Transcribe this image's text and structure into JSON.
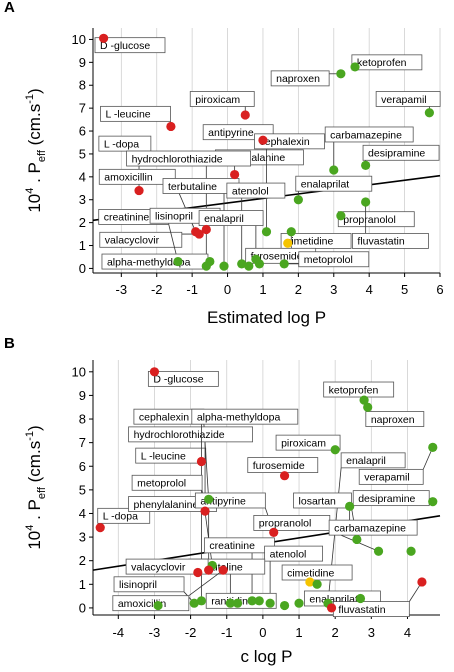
{
  "colors": {
    "red": "#d92020",
    "green": "#4aa620",
    "yellow": "#f5c400",
    "grid": "#d0d0d0"
  },
  "chart_data": [
    {
      "type": "scatter",
      "panel": "A",
      "xlabel": "Estimated log P",
      "ylabel_main": "10",
      "ylabel_sup": "4",
      "ylabel_p": "P",
      "ylabel_sub": "eff",
      "ylabel_unit": "(cm.s",
      "ylabel_sup2": "-1",
      "ylabel_close": ")",
      "xlim": [
        -3.8,
        6.0
      ],
      "ylim": [
        -0.2,
        10.5
      ],
      "xticks": [
        -3,
        -2,
        -1,
        0,
        1,
        2,
        3,
        4,
        5,
        6
      ],
      "yticks": [
        0,
        1,
        2,
        3,
        4,
        5,
        6,
        7,
        8,
        9,
        10
      ],
      "trend": [
        [
          -3.8,
          2.1
        ],
        [
          6.0,
          4.05
        ]
      ],
      "points": [
        {
          "name": "D -glucose",
          "x": -3.5,
          "y": 10.05,
          "color": "red",
          "lx": -2.9,
          "ly": 9.75
        },
        {
          "name": "L -leucine",
          "x": -1.6,
          "y": 6.2,
          "color": "red",
          "lx": -2.6,
          "ly": 6.75
        },
        {
          "name": "L -dopa",
          "x": -2.5,
          "y": 3.4,
          "color": "red",
          "lx": -2.9,
          "ly": 5.45
        },
        {
          "name": "piroxicam",
          "x": 0.5,
          "y": 6.7,
          "color": "red",
          "lx": -0.15,
          "ly": 7.4
        },
        {
          "name": "antipyrine",
          "x": 1.0,
          "y": 5.6,
          "color": "red",
          "lx": 0.3,
          "ly": 5.95
        },
        {
          "name": "phenylalanine",
          "x": 0.2,
          "y": 4.1,
          "color": "red",
          "lx": 0.9,
          "ly": 4.85
        },
        {
          "name": "hydrochlorothiazide",
          "x": -0.6,
          "y": 1.7,
          "color": "red",
          "lx": -1.1,
          "ly": 4.8
        },
        {
          "name": "amoxicillin",
          "x": -0.9,
          "y": 1.6,
          "color": "red",
          "lx": -2.55,
          "ly": 4.0
        },
        {
          "name": "valacyclovir",
          "x": -0.8,
          "y": 1.5,
          "color": "red",
          "lx": -2.45,
          "ly": 1.25
        },
        {
          "name": "naproxen",
          "x": 3.2,
          "y": 8.5,
          "color": "green",
          "lx": 2.05,
          "ly": 8.3
        },
        {
          "name": "ketoprofen",
          "x": 3.6,
          "y": 8.8,
          "color": "green",
          "lx": 4.5,
          "ly": 9.0
        },
        {
          "name": "verapamil",
          "x": 5.7,
          "y": 6.8,
          "color": "green",
          "lx": 5.1,
          "ly": 7.4
        },
        {
          "name": "cephalexin",
          "x": 1.1,
          "y": 1.6,
          "color": "green",
          "lx": 1.75,
          "ly": 5.55
        },
        {
          "name": "carbamazepine",
          "x": 3.0,
          "y": 4.3,
          "color": "green",
          "lx": 4.0,
          "ly": 5.85
        },
        {
          "name": "desipramine",
          "x": 3.9,
          "y": 4.5,
          "color": "green",
          "lx": 4.9,
          "ly": 5.05
        },
        {
          "name": "terbutaline",
          "x": -0.1,
          "y": 0.1,
          "color": "green",
          "lx": -0.75,
          "ly": 3.6
        },
        {
          "name": "atenolol",
          "x": 0.4,
          "y": 0.2,
          "color": "green",
          "lx": 0.8,
          "ly": 3.4
        },
        {
          "name": "creatinine",
          "x": -1.4,
          "y": 0.3,
          "color": "green",
          "lx": -2.65,
          "ly": 2.25
        },
        {
          "name": "lisinopril",
          "x": -0.6,
          "y": 0.1,
          "color": "green",
          "lx": -1.2,
          "ly": 2.3
        },
        {
          "name": "enalapril",
          "x": 0.8,
          "y": 0.4,
          "color": "green",
          "lx": 0.1,
          "ly": 2.2
        },
        {
          "name": "enalaprilat",
          "x": 2.0,
          "y": 3.0,
          "color": "green",
          "lx": 3.0,
          "ly": 3.7
        },
        {
          "name": "propranolol",
          "x": 3.2,
          "y": 2.3,
          "color": "green",
          "lx": 4.2,
          "ly": 2.15
        },
        {
          "name": "fluvastatin",
          "x": 3.9,
          "y": 2.9,
          "color": "green",
          "lx": 4.6,
          "ly": 1.2
        },
        {
          "name": "cimetidine",
          "x": 1.7,
          "y": 1.1,
          "color": "yellow",
          "lx": 2.5,
          "ly": 1.2
        },
        {
          "name": "furosemide",
          "x": 1.8,
          "y": 1.6,
          "color": "green",
          "lx": 1.5,
          "ly": 0.55
        },
        {
          "name": "metoprolol",
          "x": 1.6,
          "y": 0.2,
          "color": "green",
          "lx": 3.0,
          "ly": 0.4
        },
        {
          "name": "alpha-methyldopa",
          "x": -0.5,
          "y": 0.3,
          "color": "green",
          "lx": -2.05,
          "ly": 0.3
        },
        {
          "name": "",
          "x": 0.6,
          "y": 0.1,
          "color": "green"
        },
        {
          "name": "",
          "x": 0.9,
          "y": 0.2,
          "color": "green"
        }
      ]
    },
    {
      "type": "scatter",
      "panel": "B",
      "xlabel": "c log P",
      "ylabel_main": "10",
      "ylabel_sup": "4",
      "ylabel_p": "P",
      "ylabel_sub": "eff",
      "ylabel_unit": "(cm.s",
      "ylabel_sup2": "-1",
      "ylabel_close": ")",
      "xlim": [
        -4.7,
        4.9
      ],
      "ylim": [
        -0.3,
        10.5
      ],
      "xticks": [
        -4,
        -3,
        -2,
        -1,
        0,
        1,
        2,
        3,
        4
      ],
      "yticks": [
        0,
        1,
        2,
        3,
        4,
        5,
        6,
        7,
        8,
        9,
        10
      ],
      "trend": [
        [
          -4.7,
          1.6
        ],
        [
          4.9,
          3.9
        ]
      ],
      "points": [
        {
          "name": "D -glucose",
          "x": -3.0,
          "y": 10.0,
          "color": "red",
          "lx": -2.2,
          "ly": 9.7
        },
        {
          "name": "L -leucine",
          "x": -1.7,
          "y": 6.2,
          "color": "red",
          "lx": -2.55,
          "ly": 6.45
        },
        {
          "name": "L -dopa",
          "x": -4.5,
          "y": 3.4,
          "color": "red",
          "lx": -3.85,
          "ly": 3.9
        },
        {
          "name": "cephalexin",
          "x": -1.5,
          "y": 4.6,
          "color": "green",
          "lx": -2.6,
          "ly": 8.1
        },
        {
          "name": "hydrochlorothiazide",
          "x": -1.6,
          "y": 4.1,
          "color": "red",
          "lx": -2.0,
          "ly": 7.35
        },
        {
          "name": "alpha-methyldopa",
          "x": -1.7,
          "y": 0.3,
          "color": "green",
          "lx": -0.5,
          "ly": 8.1
        },
        {
          "name": "metoprolol",
          "x": -1.4,
          "y": 1.8,
          "color": "green",
          "lx": -2.65,
          "ly": 5.3
        },
        {
          "name": "phenylalanine",
          "x": -1.5,
          "y": 1.6,
          "color": "red",
          "lx": -2.5,
          "ly": 4.4
        },
        {
          "name": "antipyrine",
          "x": 0.3,
          "y": 3.2,
          "color": "red",
          "lx": -0.9,
          "ly": 4.55
        },
        {
          "name": "furosemide",
          "x": 0.6,
          "y": 5.6,
          "color": "red",
          "lx": 0.55,
          "ly": 6.05
        },
        {
          "name": "piroxicam",
          "x": 2.0,
          "y": 6.7,
          "color": "green",
          "lx": 1.25,
          "ly": 7.0
        },
        {
          "name": "ketoprofen",
          "x": 2.8,
          "y": 8.8,
          "color": "green",
          "lx": 2.65,
          "ly": 9.25
        },
        {
          "name": "naproxen",
          "x": 2.9,
          "y": 8.5,
          "color": "green",
          "lx": 3.65,
          "ly": 8.0
        },
        {
          "name": "enalapril",
          "x": 1.8,
          "y": 0.2,
          "color": "green",
          "lx": 3.05,
          "ly": 6.25
        },
        {
          "name": "verapamil",
          "x": 4.7,
          "y": 6.8,
          "color": "green",
          "lx": 3.55,
          "ly": 5.55
        },
        {
          "name": "desipramine",
          "x": 4.7,
          "y": 4.5,
          "color": "green",
          "lx": 3.55,
          "ly": 4.65
        },
        {
          "name": "losartan",
          "x": 2.6,
          "y": 2.9,
          "color": "green",
          "lx": 1.65,
          "ly": 4.55
        },
        {
          "name": "propranolol",
          "x": 3.2,
          "y": 2.4,
          "color": "green",
          "lx": 0.8,
          "ly": 3.6
        },
        {
          "name": "carbamazepine",
          "x": 2.4,
          "y": 4.3,
          "color": "green",
          "lx": 3.05,
          "ly": 3.4
        },
        {
          "name": "creatinine",
          "x": -0.3,
          "y": 0.3,
          "color": "green",
          "lx": -0.65,
          "ly": 2.65
        },
        {
          "name": "atenolol",
          "x": 0.2,
          "y": 0.2,
          "color": "green",
          "lx": 0.85,
          "ly": 2.3
        },
        {
          "name": "terbutaline",
          "x": -0.9,
          "y": 0.2,
          "color": "green",
          "lx": -1.0,
          "ly": 1.75
        },
        {
          "name": "valacyclovir",
          "x": -1.8,
          "y": 1.5,
          "color": "red",
          "lx": -2.65,
          "ly": 1.75
        },
        {
          "name": "cimetidine",
          "x": 1.3,
          "y": 1.1,
          "color": "yellow",
          "lx": 1.5,
          "ly": 1.5
        },
        {
          "name": "lisinopril",
          "x": -1.9,
          "y": 0.2,
          "color": "green",
          "lx": -3.15,
          "ly": 1.0
        },
        {
          "name": "amoxicillin",
          "x": -1.1,
          "y": 1.6,
          "color": "red",
          "lx": -3.1,
          "ly": 0.2
        },
        {
          "name": "ranitidine",
          "x": -0.1,
          "y": 0.3,
          "color": "green",
          "lx": -0.6,
          "ly": 0.3
        },
        {
          "name": "enalaprilat",
          "x": 2.7,
          "y": 0.4,
          "color": "green",
          "lx": 2.2,
          "ly": 0.4
        },
        {
          "name": "fluvastatin",
          "x": 4.4,
          "y": 1.1,
          "color": "red",
          "lx": 3.0,
          "ly": -0.05
        },
        {
          "name": "",
          "x": -2.9,
          "y": 0.1,
          "color": "green"
        },
        {
          "name": "",
          "x": 1.9,
          "y": 0.0,
          "color": "red"
        },
        {
          "name": "",
          "x": 0.6,
          "y": 0.1,
          "color": "green"
        },
        {
          "name": "",
          "x": 1.0,
          "y": 0.2,
          "color": "green"
        },
        {
          "name": "",
          "x": 1.5,
          "y": 1.0,
          "color": "green"
        },
        {
          "name": "",
          "x": 4.1,
          "y": 2.4,
          "color": "green"
        },
        {
          "name": "",
          "x": -0.7,
          "y": 0.2,
          "color": "green"
        }
      ]
    }
  ]
}
